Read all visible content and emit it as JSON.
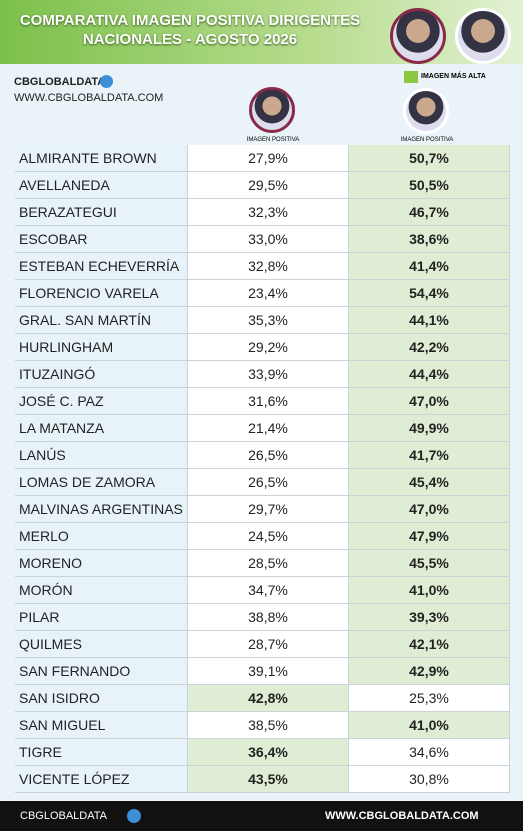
{
  "header": {
    "title_line1": "COMPARATIVA IMAGEN POSITIVA DIRIGENTES",
    "title_line2": "NACIONALES - AGOSTO  2026"
  },
  "brand": {
    "name": "CBGLOBALDATA",
    "url": "WWW.CBGLOBALDATA.COM"
  },
  "legend": {
    "label": "IMAGEN MÁS ALTA",
    "color": "#8dc63f"
  },
  "columns": [
    "IMAGEN POSITIVA",
    "IMAGEN POSITIVA"
  ],
  "table": {
    "highlight_color": "#deedd3",
    "rows": [
      {
        "name": "ALMIRANTE BROWN",
        "values": [
          "27,9%",
          "50,7%"
        ],
        "highlight": 1
      },
      {
        "name": "AVELLANEDA",
        "values": [
          "29,5%",
          "50,5%"
        ],
        "highlight": 1
      },
      {
        "name": "BERAZATEGUI",
        "values": [
          "32,3%",
          "46,7%"
        ],
        "highlight": 1
      },
      {
        "name": "ESCOBAR",
        "values": [
          "33,0%",
          "38,6%"
        ],
        "highlight": 1
      },
      {
        "name": "ESTEBAN ECHEVERRÍA",
        "values": [
          "32,8%",
          "41,4%"
        ],
        "highlight": 1
      },
      {
        "name": "FLORENCIO VARELA",
        "values": [
          "23,4%",
          "54,4%"
        ],
        "highlight": 1
      },
      {
        "name": "GRAL. SAN MARTÍN",
        "values": [
          "35,3%",
          "44,1%"
        ],
        "highlight": 1
      },
      {
        "name": "HURLINGHAM",
        "values": [
          "29,2%",
          "42,2%"
        ],
        "highlight": 1
      },
      {
        "name": "ITUZAINGÓ",
        "values": [
          "33,9%",
          "44,4%"
        ],
        "highlight": 1
      },
      {
        "name": "JOSÉ C. PAZ",
        "values": [
          "31,6%",
          "47,0%"
        ],
        "highlight": 1
      },
      {
        "name": "LA MATANZA",
        "values": [
          "21,4%",
          "49,9%"
        ],
        "highlight": 1
      },
      {
        "name": "LANÚS",
        "values": [
          "26,5%",
          "41,7%"
        ],
        "highlight": 1
      },
      {
        "name": "LOMAS DE ZAMORA",
        "values": [
          "26,5%",
          "45,4%"
        ],
        "highlight": 1
      },
      {
        "name": "MALVINAS ARGENTINAS",
        "values": [
          "29,7%",
          "47,0%"
        ],
        "highlight": 1
      },
      {
        "name": "MERLO",
        "values": [
          "24,5%",
          "47,9%"
        ],
        "highlight": 1
      },
      {
        "name": "MORENO",
        "values": [
          "28,5%",
          "45,5%"
        ],
        "highlight": 1
      },
      {
        "name": "MORÓN",
        "values": [
          "34,7%",
          "41,0%"
        ],
        "highlight": 1
      },
      {
        "name": "PILAR",
        "values": [
          "38,8%",
          "39,3%"
        ],
        "highlight": 1
      },
      {
        "name": "QUILMES",
        "values": [
          "28,7%",
          "42,1%"
        ],
        "highlight": 1
      },
      {
        "name": "SAN FERNANDO",
        "values": [
          "39,1%",
          "42,9%"
        ],
        "highlight": 1
      },
      {
        "name": "SAN ISIDRO",
        "values": [
          "42,8%",
          "25,3%"
        ],
        "highlight": 0
      },
      {
        "name": "SAN MIGUEL",
        "values": [
          "38,5%",
          "41,0%"
        ],
        "highlight": 1
      },
      {
        "name": "TIGRE",
        "values": [
          "36,4%",
          "34,6%"
        ],
        "highlight": 0
      },
      {
        "name": "VICENTE LÓPEZ",
        "values": [
          "43,5%",
          "30,8%"
        ],
        "highlight": 0
      }
    ]
  }
}
